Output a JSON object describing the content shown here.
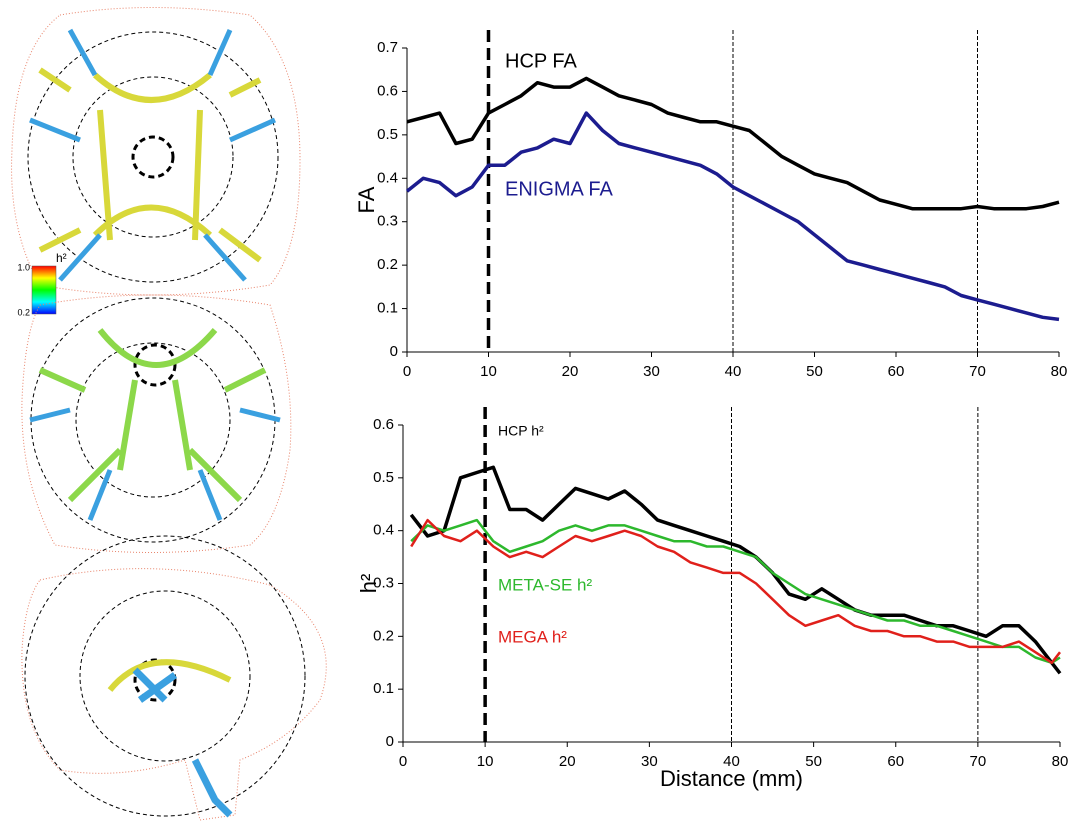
{
  "colorbar": {
    "max": "1.0",
    "label": "h²",
    "min": "0.2"
  },
  "chart_data": [
    {
      "type": "line",
      "y_label": "FA",
      "x": [
        0,
        2,
        4,
        6,
        8,
        10,
        12,
        14,
        16,
        18,
        20,
        22,
        24,
        26,
        28,
        30,
        32,
        34,
        36,
        38,
        40,
        42,
        44,
        46,
        48,
        50,
        52,
        54,
        56,
        58,
        60,
        62,
        64,
        66,
        68,
        70,
        72,
        74,
        76,
        78,
        80
      ],
      "series": [
        {
          "name": "HCP FA",
          "color": "#000000",
          "values": [
            0.53,
            0.54,
            0.55,
            0.48,
            0.49,
            0.55,
            0.57,
            0.59,
            0.62,
            0.61,
            0.61,
            0.63,
            0.61,
            0.59,
            0.58,
            0.57,
            0.55,
            0.54,
            0.53,
            0.53,
            0.52,
            0.51,
            0.48,
            0.45,
            0.43,
            0.41,
            0.4,
            0.39,
            0.37,
            0.35,
            0.34,
            0.33,
            0.33,
            0.33,
            0.33,
            0.335,
            0.33,
            0.33,
            0.33,
            0.335,
            0.345
          ]
        },
        {
          "name": "ENIGMA FA",
          "color": "#1c1c8f",
          "values": [
            0.37,
            0.4,
            0.39,
            0.36,
            0.38,
            0.43,
            0.43,
            0.46,
            0.47,
            0.49,
            0.48,
            0.55,
            0.51,
            0.48,
            0.47,
            0.46,
            0.45,
            0.44,
            0.43,
            0.41,
            0.38,
            0.36,
            0.34,
            0.32,
            0.3,
            0.27,
            0.24,
            0.21,
            0.2,
            0.19,
            0.18,
            0.17,
            0.16,
            0.15,
            0.13,
            0.12,
            0.11,
            0.1,
            0.09,
            0.08,
            0.075
          ]
        }
      ],
      "xlim": [
        0,
        80
      ],
      "xticks": [
        0,
        10,
        20,
        30,
        40,
        50,
        60,
        70,
        80
      ],
      "ylim": [
        0,
        0.7
      ],
      "yticks": [
        0,
        0.1,
        0.2,
        0.3,
        0.4,
        0.5,
        0.6,
        0.7
      ],
      "vlines": [
        10,
        40,
        70
      ]
    },
    {
      "type": "line",
      "y_label": "h²",
      "x_label": "Distance (mm)",
      "x": [
        1,
        3,
        5,
        7,
        9,
        11,
        13,
        15,
        17,
        19,
        21,
        23,
        25,
        27,
        29,
        31,
        33,
        35,
        37,
        39,
        41,
        43,
        45,
        47,
        49,
        51,
        53,
        55,
        57,
        59,
        61,
        63,
        65,
        67,
        69,
        71,
        73,
        75,
        77,
        79,
        80
      ],
      "series": [
        {
          "name": "HCP h²",
          "color": "#000000",
          "values": [
            0.43,
            0.39,
            0.4,
            0.5,
            0.51,
            0.52,
            0.44,
            0.44,
            0.42,
            0.45,
            0.48,
            0.47,
            0.46,
            0.475,
            0.45,
            0.42,
            0.41,
            0.4,
            0.39,
            0.38,
            0.37,
            0.35,
            0.32,
            0.28,
            0.27,
            0.29,
            0.27,
            0.25,
            0.24,
            0.24,
            0.24,
            0.23,
            0.22,
            0.22,
            0.21,
            0.2,
            0.22,
            0.22,
            0.19,
            0.15,
            0.13
          ]
        },
        {
          "name": "META-SE h²",
          "color": "#2db82d",
          "values": [
            0.38,
            0.41,
            0.4,
            0.41,
            0.42,
            0.38,
            0.36,
            0.37,
            0.38,
            0.4,
            0.41,
            0.4,
            0.41,
            0.41,
            0.4,
            0.39,
            0.38,
            0.38,
            0.37,
            0.37,
            0.36,
            0.35,
            0.32,
            0.3,
            0.28,
            0.27,
            0.26,
            0.25,
            0.24,
            0.23,
            0.23,
            0.22,
            0.22,
            0.21,
            0.2,
            0.19,
            0.18,
            0.18,
            0.16,
            0.15,
            0.16
          ]
        },
        {
          "name": "MEGA h²",
          "color": "#e0201b",
          "values": [
            0.37,
            0.42,
            0.39,
            0.38,
            0.4,
            0.37,
            0.35,
            0.36,
            0.35,
            0.37,
            0.39,
            0.38,
            0.39,
            0.4,
            0.39,
            0.37,
            0.36,
            0.34,
            0.33,
            0.32,
            0.32,
            0.3,
            0.27,
            0.24,
            0.22,
            0.23,
            0.24,
            0.22,
            0.21,
            0.21,
            0.2,
            0.2,
            0.19,
            0.19,
            0.18,
            0.18,
            0.18,
            0.19,
            0.17,
            0.15,
            0.17
          ]
        }
      ],
      "xlim": [
        0,
        80
      ],
      "xticks": [
        0,
        10,
        20,
        30,
        40,
        50,
        60,
        70,
        80
      ],
      "ylim": [
        0,
        0.6
      ],
      "yticks": [
        0,
        0.1,
        0.2,
        0.3,
        0.4,
        0.5,
        0.6
      ],
      "vlines": [
        10,
        40,
        70
      ]
    }
  ]
}
